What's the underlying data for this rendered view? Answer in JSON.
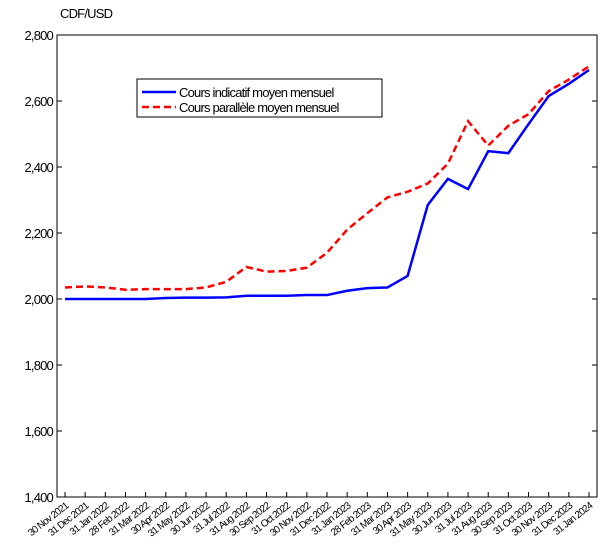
{
  "chart_data": {
    "type": "line",
    "y_label": "CDF/USD",
    "categories": [
      "30 Nov 2021",
      "31 Dec 2021",
      "31 Jan 2022",
      "28 Feb 2022",
      "31 Mar 2022",
      "30 Apr 2022",
      "31 May 2022",
      "30 Jun 2022",
      "31 Jul 2022",
      "31 Aug 2022",
      "30 Sep 2022",
      "31 Oct 2022",
      "30 Nov 2022",
      "31 Dec 2022",
      "31 Jan 2023",
      "28 Feb 2023",
      "31 Mar 2023",
      "30 Apr 2023",
      "31 May 2023",
      "30 Jun 2023",
      "31 Jul 2023",
      "31 Aug 2023",
      "30 Sep 2023",
      "31 Oct 2023",
      "30 Nov 2023",
      "31 Dec 2023",
      "31 Jan 2024"
    ],
    "series": [
      {
        "name": "Cours indicatif moyen mensuel",
        "color": "#0000ff",
        "dash": false,
        "values": [
          2000,
          2000,
          2000,
          2000,
          2000,
          2003,
          2004,
          2004,
          2005,
          2010,
          2010,
          2010,
          2012,
          2012,
          2025,
          2033,
          2035,
          2070,
          2285,
          2364,
          2333,
          2448,
          2442,
          2530,
          2615,
          2652,
          2694
        ]
      },
      {
        "name": "Cours parallèle moyen mensuel",
        "color": "#ff0000",
        "dash": true,
        "values": [
          2035,
          2038,
          2035,
          2028,
          2030,
          2030,
          2030,
          2035,
          2052,
          2097,
          2083,
          2085,
          2095,
          2140,
          2210,
          2260,
          2308,
          2325,
          2350,
          2410,
          2539,
          2465,
          2525,
          2560,
          2630,
          2665,
          2705
        ]
      }
    ],
    "ylim": [
      1400,
      2800
    ],
    "yticks": [
      {
        "value": 1400,
        "label": "1,400"
      },
      {
        "value": 1600,
        "label": "1,600"
      },
      {
        "value": 1800,
        "label": "1,800"
      },
      {
        "value": 2000,
        "label": "2,000"
      },
      {
        "value": 2200,
        "label": "2,200"
      },
      {
        "value": 2400,
        "label": "2,400"
      },
      {
        "value": 2600,
        "label": "2,600"
      },
      {
        "value": 2800,
        "label": "2,800"
      }
    ],
    "grid": false
  }
}
